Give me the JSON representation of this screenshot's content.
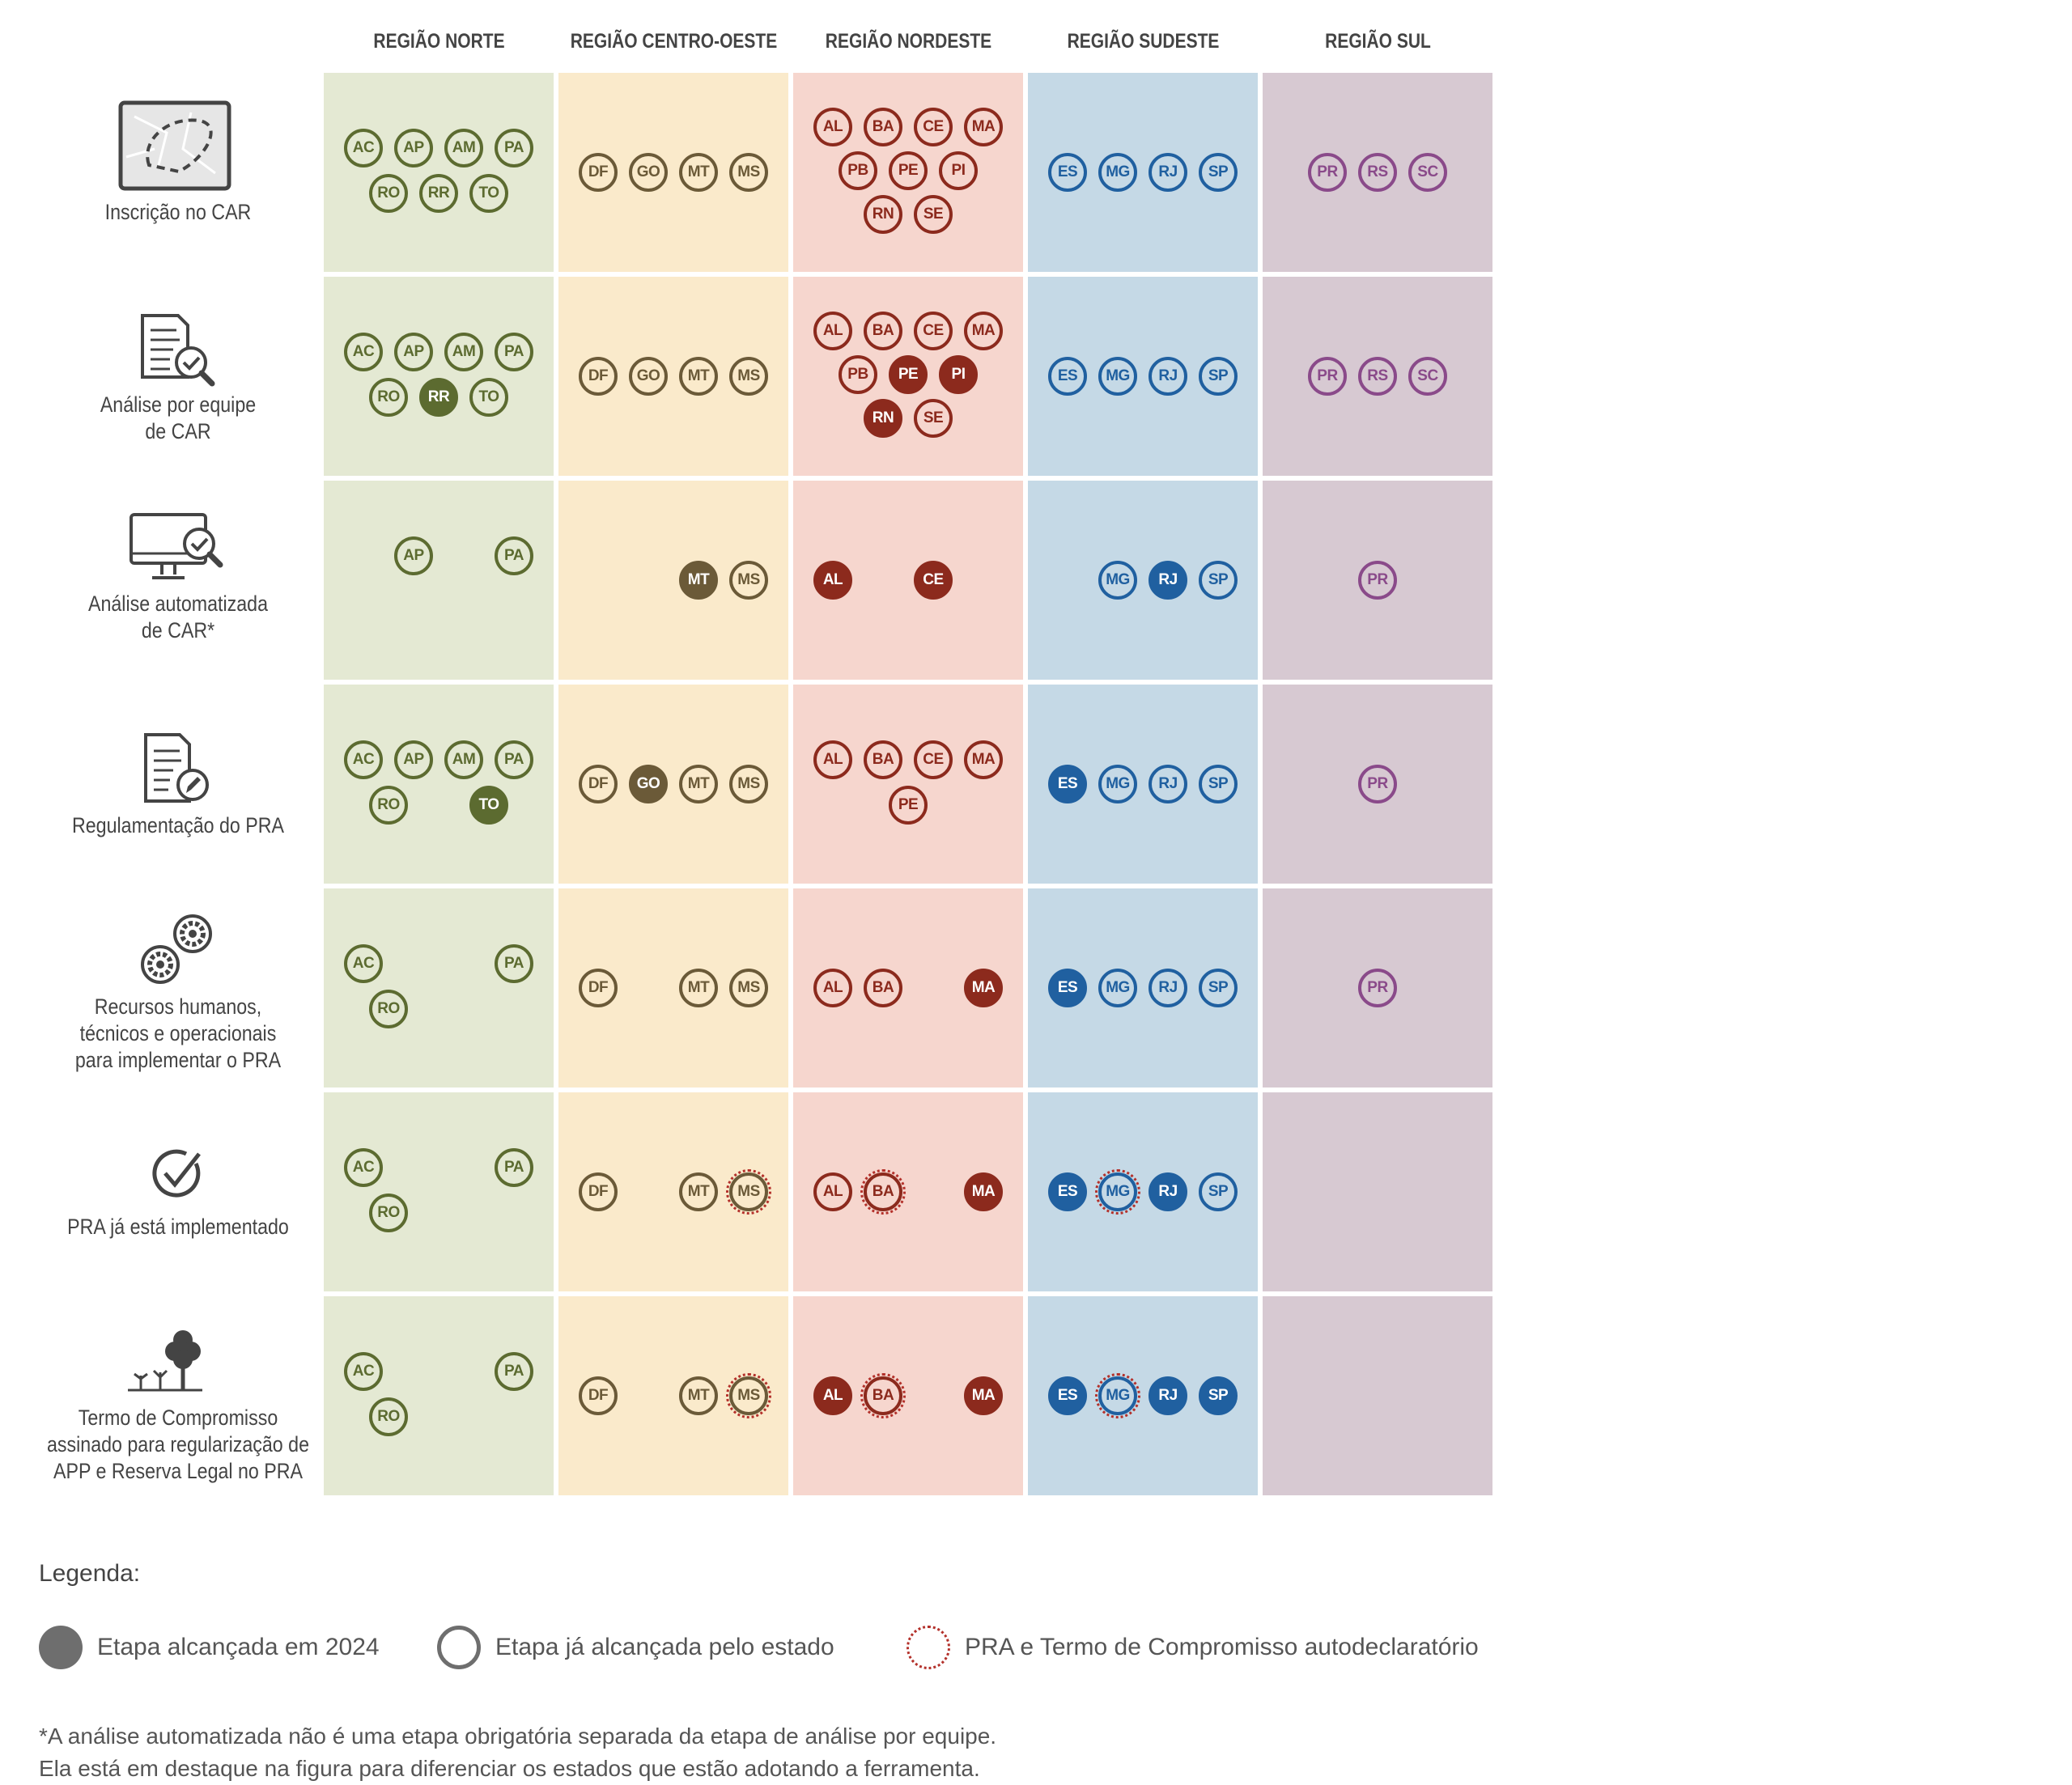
{
  "regions": [
    {
      "name": "REGIÃO NORTE",
      "bg": "#e4e9d3",
      "color": "#5c6b30"
    },
    {
      "name": "REGIÃO CENTRO-OESTE",
      "bg": "#faeacb",
      "color": "#6b5a38"
    },
    {
      "name": "REGIÃO NORDESTE",
      "bg": "#f6d6ce",
      "color": "#8c2a1d"
    },
    {
      "name": "REGIÃO SUDESTE",
      "bg": "#c5d9e6",
      "color": "#2060a0"
    },
    {
      "name": "REGIÃO SUL",
      "bg": "#d7c9d2",
      "color": "#8a4a8a"
    }
  ],
  "rows": [
    {
      "icon": "map-icon",
      "label": [
        "Inscrição no CAR"
      ],
      "cells": [
        [
          [
            "AC",
            "AP",
            "AM",
            "PA"
          ],
          [
            "RO",
            "RR",
            "TO"
          ]
        ],
        [
          [
            "DF",
            "GO",
            "MT",
            "MS"
          ]
        ],
        [
          [
            "AL",
            "BA",
            "CE",
            "MA"
          ],
          [
            "PB",
            "PE",
            "PI"
          ],
          [
            "RN",
            "SE"
          ]
        ],
        [
          [
            "ES",
            "MG",
            "RJ",
            "SP"
          ]
        ],
        [
          [
            "PR",
            "RS",
            "SC"
          ]
        ]
      ]
    },
    {
      "icon": "document-search-icon",
      "label": [
        "Análise por equipe",
        "de CAR"
      ],
      "cells": [
        [
          [
            "AC",
            "AP",
            "AM",
            "PA"
          ],
          [
            "RO",
            "RR*",
            "TO"
          ]
        ],
        [
          [
            "DF",
            "GO",
            "MT",
            "MS"
          ]
        ],
        [
          [
            "AL",
            "BA",
            "CE",
            "MA"
          ],
          [
            "PB",
            "PE*",
            "PI*"
          ],
          [
            "RN*",
            "SE"
          ]
        ],
        [
          [
            "ES",
            "MG",
            "RJ",
            "SP"
          ]
        ],
        [
          [
            "PR",
            "RS",
            "SC"
          ]
        ]
      ]
    },
    {
      "icon": "computer-check-icon",
      "label": [
        "Análise automatizada",
        "de CAR*"
      ],
      "cells": [
        [
          [
            "-",
            "AP",
            "-",
            "PA"
          ],
          [
            "-",
            "-",
            "-"
          ]
        ],
        [
          [
            "-",
            "-",
            "MT*",
            "MS"
          ]
        ],
        [
          [
            "AL*",
            "-",
            "CE*",
            "-"
          ]
        ],
        [
          [
            "-",
            "MG",
            "RJ*",
            "SP"
          ]
        ],
        [
          [
            "PR"
          ]
        ]
      ]
    },
    {
      "icon": "document-pen-icon",
      "label": [
        "Regulamentação do PRA"
      ],
      "cells": [
        [
          [
            "AC",
            "AP",
            "AM",
            "PA"
          ],
          [
            "RO",
            "-",
            "TO*"
          ]
        ],
        [
          [
            "DF",
            "GO*",
            "MT",
            "MS"
          ]
        ],
        [
          [
            "AL",
            "BA",
            "CE",
            "MA"
          ],
          [
            "-",
            "PE",
            "-"
          ]
        ],
        [
          [
            "ES*",
            "MG",
            "RJ",
            "SP"
          ]
        ],
        [
          [
            "PR"
          ]
        ]
      ]
    },
    {
      "icon": "gears-icon",
      "label": [
        "Recursos humanos,",
        "técnicos e operacionais",
        "para implementar o PRA"
      ],
      "cells": [
        [
          [
            "AC",
            "-",
            "-",
            "PA"
          ],
          [
            "RO",
            "-",
            "-"
          ]
        ],
        [
          [
            "DF",
            "-",
            "MT",
            "MS"
          ]
        ],
        [
          [
            "AL",
            "BA",
            "-",
            "MA*"
          ]
        ],
        [
          [
            "ES*",
            "MG",
            "RJ",
            "SP"
          ]
        ],
        [
          [
            "PR"
          ]
        ]
      ]
    },
    {
      "icon": "checkmark-icon",
      "label": [
        "PRA já está implementado"
      ],
      "cells": [
        [
          [
            "AC",
            "-",
            "-",
            "PA"
          ],
          [
            "RO",
            "-",
            "-"
          ]
        ],
        [
          [
            "DF",
            "-",
            "MT",
            "MS~"
          ]
        ],
        [
          [
            "AL",
            "BA~",
            "-",
            "MA*"
          ]
        ],
        [
          [
            "ES*",
            "MG~",
            "RJ*",
            "SP"
          ]
        ],
        []
      ]
    },
    {
      "icon": "trees-icon",
      "label": [
        "Termo de Compromisso",
        "assinado para regularização de",
        "APP e Reserva Legal no PRA"
      ],
      "cells": [
        [
          [
            "AC",
            "-",
            "-",
            "PA"
          ],
          [
            "RO",
            "-",
            "-"
          ]
        ],
        [
          [
            "DF",
            "-",
            "MT",
            "MS~"
          ]
        ],
        [
          [
            "AL*",
            "BA~",
            "-",
            "MA*"
          ]
        ],
        [
          [
            "ES*",
            "MG~",
            "RJ*",
            "SP*"
          ]
        ],
        []
      ]
    }
  ],
  "legend": {
    "title": "Legenda:",
    "filled": "Etapa alcançada em 2024",
    "outline": "Etapa já alcançada pelo estado",
    "dotted": "PRA e Termo de Compromisso autodeclaratório",
    "filled_color": "#6e6e6e",
    "dotted_color": "#b3302a"
  },
  "footnote": [
    "*A análise automatizada não é uma etapa obrigatória separada da etapa de análise por equipe.",
    "Ela está em destaque na figura para diferenciar os estados que estão adotando a ferramenta."
  ]
}
